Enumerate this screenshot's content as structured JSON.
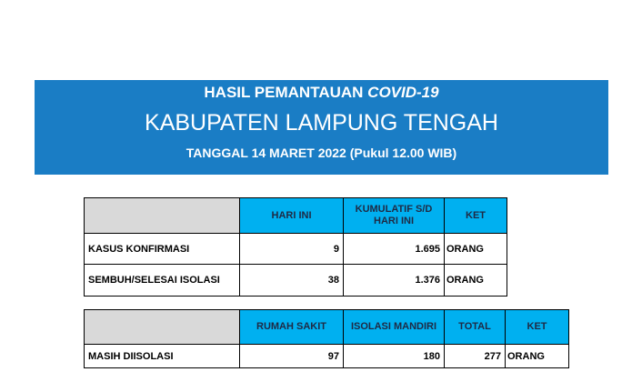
{
  "banner": {
    "title_prefix": "HASIL PEMANTAUAN",
    "title_italic": "COVID-19",
    "subtitle": "KABUPATEN LAMPUNG TENGAH",
    "date": "TANGGAL 14 MARET  2022 (Pukul 12.00 WIB)"
  },
  "table1": {
    "header": [
      "HARI INI",
      "KUMULATIF S/D HARI INI",
      "KET"
    ],
    "rows": [
      [
        "KASUS KONFIRMASI",
        "9",
        "1.695",
        "ORANG"
      ],
      [
        "SEMBUH/SELESAI ISOLASI",
        "38",
        "1.376",
        "ORANG"
      ]
    ]
  },
  "table2": {
    "header": [
      "RUMAH SAKIT",
      "ISOLASI MANDIRI",
      "TOTAL",
      "KET"
    ],
    "rows": [
      [
        "MASIH DIISOLASI",
        "97",
        "180",
        "277",
        "ORANG"
      ]
    ]
  }
}
